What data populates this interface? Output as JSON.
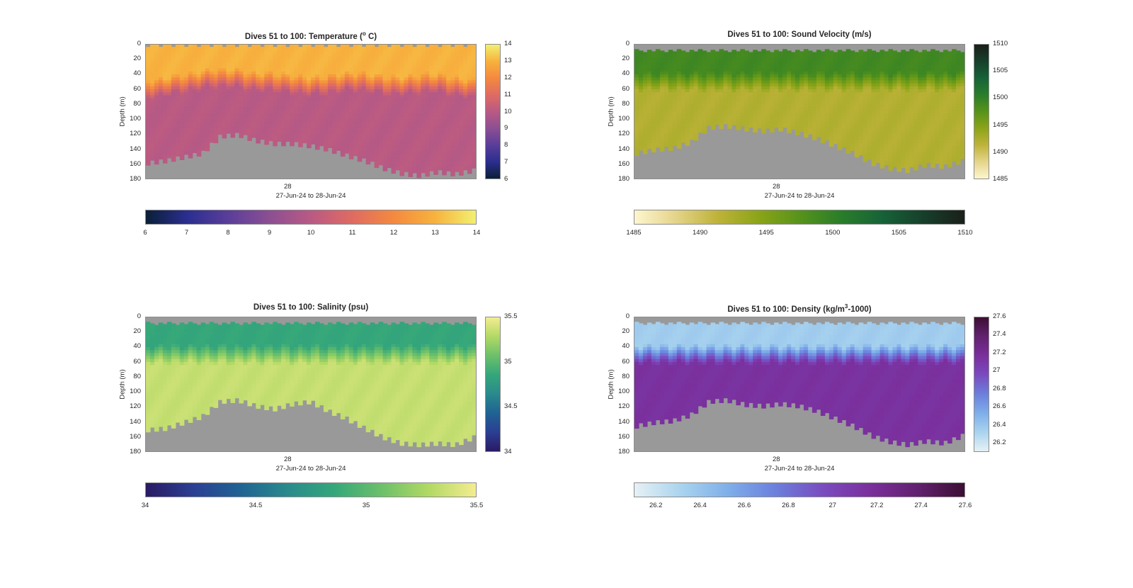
{
  "figure_background": "#ffffff",
  "panels": [
    {
      "id": "temperature",
      "title": "Dives 51 to 100: Temperature (",
      "title_sup": "o",
      "title_tail": " C)",
      "ylabel": "Depth (m)",
      "yticks": [
        "0",
        "20",
        "40",
        "60",
        "80",
        "100",
        "120",
        "140",
        "160",
        "180"
      ],
      "xtick": "28",
      "xrange_label": "27-Jun-24 to 28-Jun-24",
      "colormap": [
        "#0a1f36",
        "#2b2e8f",
        "#5a3e9a",
        "#8c4f92",
        "#b95a84",
        "#df6b62",
        "#f4893f",
        "#f7b23e",
        "#f2f070"
      ],
      "cbar_ticks": [
        "6",
        "7",
        "8",
        "9",
        "10",
        "11",
        "12",
        "13",
        "14"
      ],
      "cbar_range": [
        6,
        14
      ]
    },
    {
      "id": "sound-velocity",
      "title": "Dives 51 to 100: Sound Velocity (m/s)",
      "ylabel": "Depth (m)",
      "yticks": [
        "0",
        "20",
        "40",
        "60",
        "80",
        "100",
        "120",
        "140",
        "160",
        "180"
      ],
      "xtick": "28",
      "xrange_label": "27-Jun-24 to 28-Jun-24",
      "colormap": [
        "#fdf6cf",
        "#e4d48a",
        "#bfb33a",
        "#8ca418",
        "#57931a",
        "#2a7d2a",
        "#166338",
        "#173f2b",
        "#1a1f1a"
      ],
      "cbar_ticks": [
        "1485",
        "1490",
        "1495",
        "1500",
        "1505",
        "1510"
      ],
      "cbar_range": [
        1485,
        1510
      ]
    },
    {
      "id": "salinity",
      "title": "Dives 51 to 100: Salinity (psu)",
      "ylabel": "Depth (m)",
      "yticks": [
        "0",
        "20",
        "40",
        "60",
        "80",
        "100",
        "120",
        "140",
        "160",
        "180"
      ],
      "xtick": "28",
      "xrange_label": "27-Jun-24 to 28-Jun-24",
      "colormap": [
        "#2a1a63",
        "#2b3f93",
        "#1f6393",
        "#2a8a8c",
        "#35a77a",
        "#6cc06a",
        "#b2d965",
        "#f4ec90"
      ],
      "cbar_ticks": [
        "34",
        "34.5",
        "35",
        "35.5"
      ],
      "cbar_range": [
        34,
        35.5
      ]
    },
    {
      "id": "density",
      "title": "Dives 51 to 100: Density (kg/m",
      "title_sup": "3",
      "title_tail": "-1000)",
      "ylabel": "Depth (m)",
      "yticks": [
        "0",
        "20",
        "40",
        "60",
        "80",
        "100",
        "120",
        "140",
        "160",
        "180"
      ],
      "xtick": "28",
      "xrange_label": "27-Jun-24 to 28-Jun-24",
      "colormap": [
        "#e6f1f5",
        "#a9d3ee",
        "#7eaeea",
        "#6b7fdc",
        "#7a4bbf",
        "#7a2f9c",
        "#62216f",
        "#3b0f33"
      ],
      "cbar_ticks": [
        "26.2",
        "26.4",
        "26.6",
        "26.8",
        "27",
        "27.2",
        "27.4",
        "27.6"
      ],
      "cbar_range": [
        26.1,
        27.6
      ]
    }
  ],
  "chart_data": [
    {
      "type": "heatmap",
      "title": "Dives 51 to 100: Temperature (o C)",
      "xlabel": "27-Jun-24 to 28-Jun-24",
      "ylabel": "Depth (m)",
      "x_tick_labels": [
        "28"
      ],
      "ylim": [
        0,
        180
      ],
      "y_reversed": true,
      "colorbar": {
        "min": 6,
        "max": 14,
        "orientation": "vertical and horizontal"
      },
      "surface_layer": {
        "depth_range_m": [
          0,
          50
        ],
        "value": 13
      },
      "thermocline_depth_m": [
        60,
        55,
        50,
        45,
        45,
        50,
        50,
        55,
        55,
        50,
        50,
        55,
        55,
        50,
        55,
        60
      ],
      "deep_layer": {
        "value": 10
      },
      "seafloor_depth_m": [
        158,
        155,
        150,
        145,
        122,
        120,
        128,
        132,
        132,
        135,
        140,
        148,
        155,
        165,
        172,
        175,
        170,
        173,
        168
      ]
    },
    {
      "type": "heatmap",
      "title": "Dives 51 to 100: Sound Velocity (m/s)",
      "xlabel": "27-Jun-24 to 28-Jun-24",
      "ylabel": "Depth (m)",
      "x_tick_labels": [
        "28"
      ],
      "ylim": [
        0,
        180
      ],
      "y_reversed": true,
      "colorbar": {
        "min": 1485,
        "max": 1510
      },
      "surface_layer": {
        "depth_range_m": [
          10,
          50
        ],
        "value": 1499
      },
      "deep_layer": {
        "value": 1492
      },
      "seafloor_depth_m": [
        145,
        140,
        138,
        130,
        110,
        108,
        112,
        115,
        112,
        118,
        125,
        135,
        145,
        158,
        165,
        168,
        160,
        163,
        155
      ]
    },
    {
      "type": "heatmap",
      "title": "Dives 51 to 100: Salinity (psu)",
      "xlabel": "27-Jun-24 to 28-Jun-24",
      "ylabel": "Depth (m)",
      "x_tick_labels": [
        "28"
      ],
      "ylim": [
        0,
        180
      ],
      "y_reversed": true,
      "colorbar": {
        "min": 34,
        "max": 35.5
      },
      "surface_layer": {
        "depth_range_m": [
          10,
          50
        ],
        "value": 34.85
      },
      "deep_layer": {
        "value": 35.35
      },
      "seafloor_depth_m": [
        150,
        148,
        140,
        132,
        112,
        110,
        118,
        122,
        115,
        112,
        125,
        135,
        148,
        160,
        168,
        170,
        168,
        170,
        160
      ]
    },
    {
      "type": "heatmap",
      "title": "Dives 51 to 100: Density (kg/m3-1000)",
      "xlabel": "27-Jun-24 to 28-Jun-24",
      "ylabel": "Depth (m)",
      "x_tick_labels": [
        "28"
      ],
      "ylim": [
        0,
        180
      ],
      "y_reversed": true,
      "colorbar": {
        "min": 26.1,
        "max": 27.6
      },
      "surface_layer": {
        "depth_range_m": [
          10,
          50
        ],
        "value": 26.35
      },
      "deep_layer": {
        "value": 27.15
      },
      "seafloor_depth_m": [
        145,
        140,
        138,
        130,
        112,
        110,
        116,
        118,
        115,
        118,
        125,
        135,
        145,
        158,
        166,
        170,
        165,
        168,
        158
      ]
    }
  ]
}
